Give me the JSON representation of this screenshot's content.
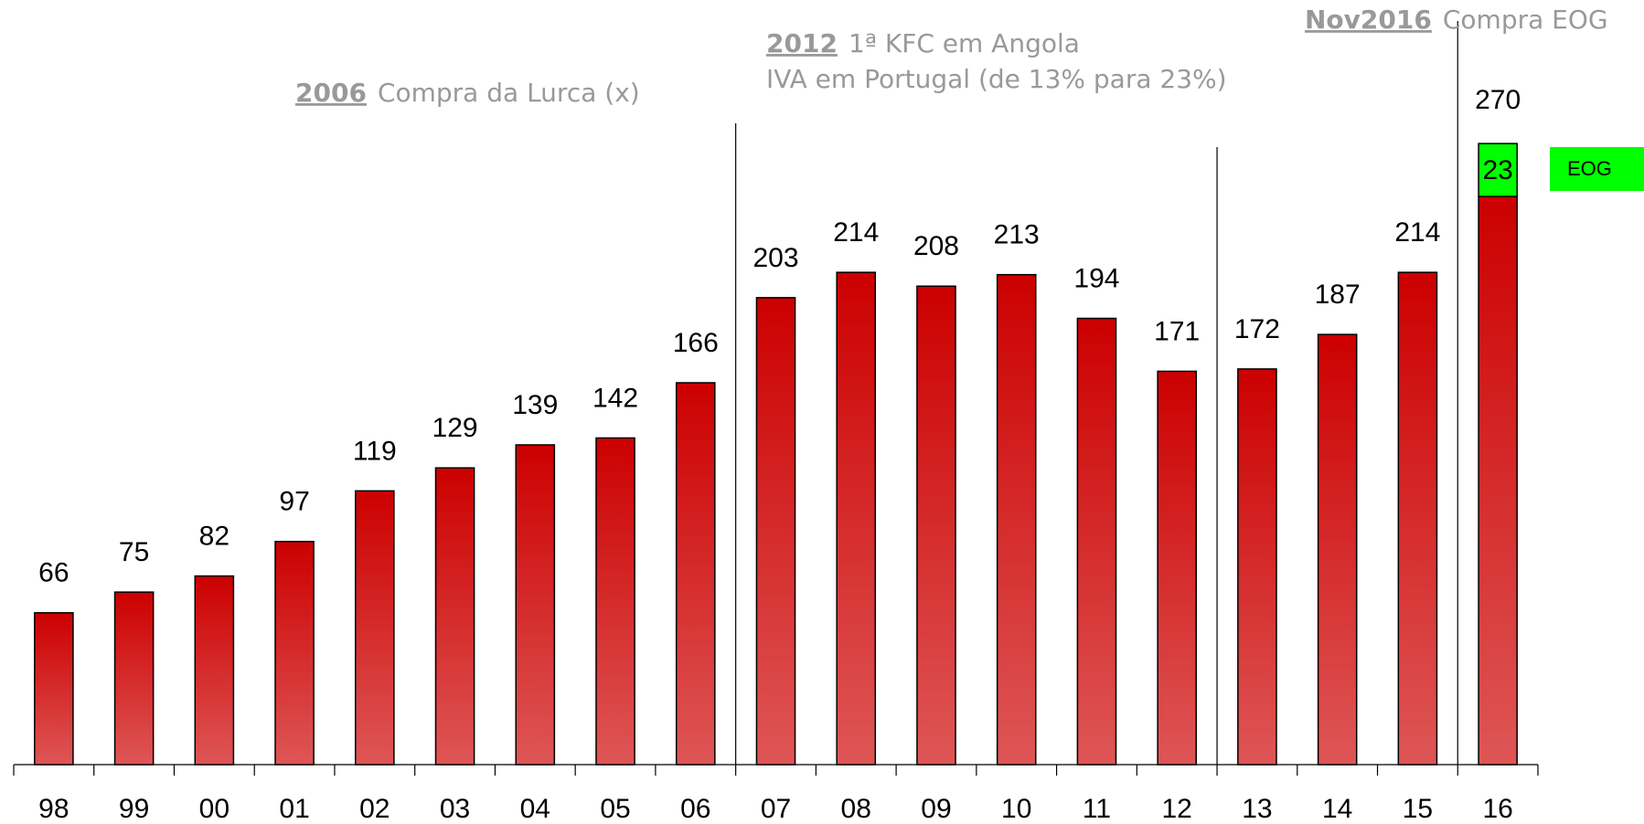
{
  "chart_data": {
    "type": "bar",
    "stacked": true,
    "categories": [
      "98",
      "99",
      "00",
      "01",
      "02",
      "03",
      "04",
      "05",
      "06",
      "07",
      "08",
      "09",
      "10",
      "11",
      "12",
      "13",
      "14",
      "15",
      "16"
    ],
    "series": [
      {
        "name": null,
        "color": "#cc0000",
        "color_light": "#de5656",
        "values": [
          66,
          75,
          82,
          97,
          119,
          129,
          139,
          142,
          166,
          203,
          214,
          208,
          213,
          194,
          171,
          172,
          187,
          214,
          247
        ],
        "value_labels": [
          "66",
          "75",
          "82",
          "97",
          "119",
          "129",
          "139",
          "142",
          "166",
          "203",
          "214",
          "208",
          "213",
          "194",
          "171",
          "172",
          "187",
          "214",
          null
        ]
      },
      {
        "name": "EOG",
        "color": "#00ff00",
        "values": [
          null,
          null,
          null,
          null,
          null,
          null,
          null,
          null,
          null,
          null,
          null,
          null,
          null,
          null,
          null,
          null,
          null,
          null,
          23
        ]
      }
    ],
    "total_label": 270,
    "ylim": [
      0,
      300
    ],
    "annotations": [
      {
        "year": "2006",
        "text": "Compra da Lurca (x)"
      },
      {
        "year": "2012",
        "text": "1ª KFC em Angola",
        "text2": "IVA em Portugal (de 13% para 23%)"
      },
      {
        "year": "Nov2016",
        "text": "Compra EOG"
      }
    ]
  }
}
